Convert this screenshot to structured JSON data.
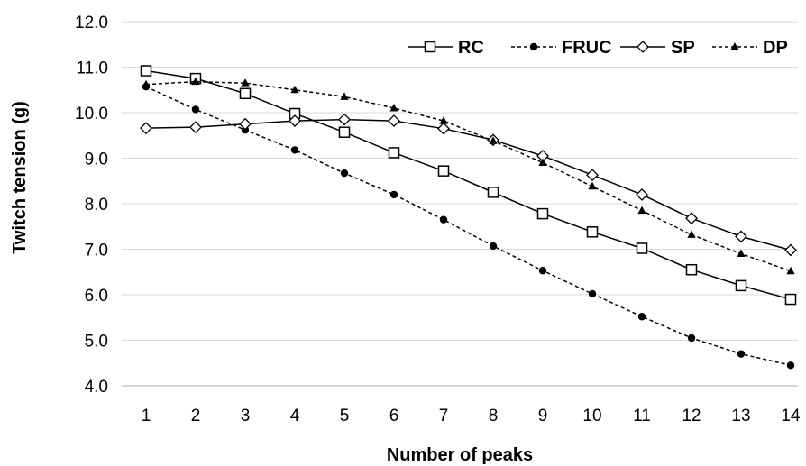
{
  "chart_data": {
    "type": "line",
    "xlabel": "Number of peaks",
    "ylabel": "Twitch tension (g)",
    "x": [
      1,
      2,
      3,
      4,
      5,
      6,
      7,
      8,
      9,
      10,
      11,
      12,
      13,
      14
    ],
    "xticks": [
      "1",
      "2",
      "3",
      "4",
      "5",
      "6",
      "7",
      "8",
      "9",
      "10",
      "11",
      "12",
      "13",
      "14"
    ],
    "ylim": [
      4.0,
      12.0
    ],
    "yticks": [
      "4.0",
      "5.0",
      "6.0",
      "7.0",
      "8.0",
      "9.0",
      "10.0",
      "11.0",
      "12.0"
    ],
    "grid": "horizontal",
    "legend": "top-right",
    "series": [
      {
        "name": "RC",
        "marker": "open-square",
        "line": "solid",
        "color": "#000000",
        "values": [
          10.92,
          10.75,
          10.42,
          9.98,
          9.57,
          9.12,
          8.72,
          8.25,
          7.78,
          7.38,
          7.02,
          6.55,
          6.2,
          5.9
        ]
      },
      {
        "name": "FRUC",
        "marker": "filled-circle",
        "line": "dashed",
        "color": "#000000",
        "values": [
          10.57,
          10.07,
          9.62,
          9.18,
          8.67,
          8.2,
          7.65,
          7.07,
          6.53,
          6.02,
          5.52,
          5.05,
          4.7,
          4.45
        ]
      },
      {
        "name": "SP",
        "marker": "open-diamond",
        "line": "solid",
        "color": "#000000",
        "values": [
          9.66,
          9.68,
          9.75,
          9.82,
          9.85,
          9.82,
          9.65,
          9.4,
          9.05,
          8.63,
          8.2,
          7.68,
          7.28,
          6.98
        ]
      },
      {
        "name": "DP",
        "marker": "filled-triangle",
        "line": "dashed",
        "color": "#000000",
        "values": [
          10.62,
          10.68,
          10.65,
          10.5,
          10.35,
          10.1,
          9.82,
          9.38,
          8.9,
          8.38,
          7.85,
          7.32,
          6.9,
          6.52
        ]
      }
    ]
  }
}
